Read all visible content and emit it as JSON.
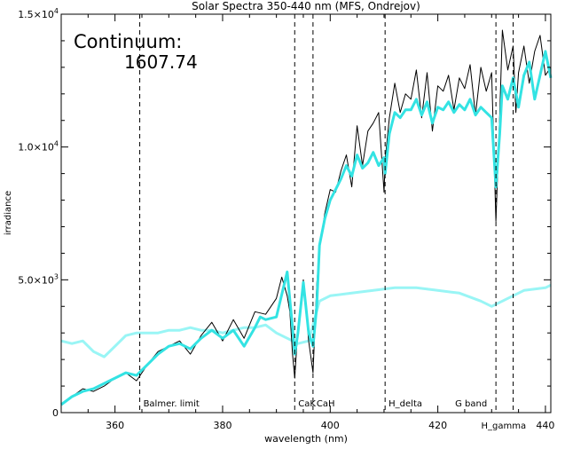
{
  "chart_data": {
    "type": "line",
    "title": "Solar Spectra 350-440 nm (MFS, Ondrejov)",
    "xlabel": "wavelength (nm)",
    "ylabel": "irradiance",
    "xlim": [
      350,
      441
    ],
    "ylim": [
      0,
      15000
    ],
    "x_ticks": [
      {
        "value": 360,
        "label": "360"
      },
      {
        "value": 380,
        "label": "380"
      },
      {
        "value": 400,
        "label": "400"
      },
      {
        "value": 420,
        "label": "420"
      },
      {
        "value": 440,
        "label": "440"
      }
    ],
    "y_ticks": [
      {
        "value": 0,
        "label": "0",
        "exp": ""
      },
      {
        "value": 5000,
        "label": "5.0×10",
        "exp": "3"
      },
      {
        "value": 10000,
        "label": "1.0×10",
        "exp": "4"
      },
      {
        "value": 15000,
        "label": "1.5×10",
        "exp": "4"
      }
    ],
    "annotation": {
      "title": "Continuum:",
      "value": "1607.74"
    },
    "reference_lines": [
      {
        "x": 364.6,
        "label": "Balmer. limit"
      },
      {
        "x": 393.4,
        "label": "CaK"
      },
      {
        "x": 396.8,
        "label": "CaH"
      },
      {
        "x": 410.2,
        "label": "H_delta"
      },
      {
        "x": 430.8,
        "label": "G band"
      },
      {
        "x": 434.0,
        "label": "H_gamma"
      }
    ],
    "series": [
      {
        "role": "high-resolution spectrum",
        "color": "#000000",
        "x": [
          350,
          352,
          354,
          356,
          358,
          360,
          362,
          364,
          366,
          368,
          370,
          372,
          374,
          376,
          378,
          380,
          382,
          384,
          386,
          388,
          390,
          391,
          392,
          392.5,
          393,
          393.4,
          394,
          395,
          396,
          396.8,
          397.5,
          398,
          399,
          400,
          401,
          402,
          403,
          404,
          405,
          406,
          407,
          408,
          409,
          410,
          410.2,
          411,
          412,
          413,
          414,
          415,
          416,
          417,
          418,
          419,
          420,
          421,
          422,
          423,
          424,
          425,
          426,
          427,
          428,
          429,
          430,
          430.8,
          431.5,
          432,
          433,
          434,
          434.5,
          435,
          436,
          437,
          438,
          439,
          440,
          441
        ],
        "y": [
          300,
          600,
          900,
          800,
          1000,
          1300,
          1500,
          1200,
          1800,
          2300,
          2500,
          2700,
          2200,
          2900,
          3400,
          2700,
          3500,
          2800,
          3800,
          3700,
          4300,
          5100,
          4400,
          3800,
          2200,
          1300,
          3200,
          5000,
          2700,
          1500,
          4800,
          6200,
          7500,
          8400,
          8300,
          9100,
          9700,
          8500,
          10800,
          9300,
          10600,
          10900,
          11300,
          8300,
          9500,
          11100,
          12400,
          11300,
          12000,
          11800,
          12900,
          11100,
          12800,
          10600,
          12300,
          12100,
          12700,
          11400,
          12600,
          12200,
          13100,
          11200,
          13000,
          12100,
          12800,
          7200,
          11200,
          14400,
          12900,
          13800,
          11300,
          12800,
          13800,
          12400,
          13600,
          14200,
          12700,
          13000
        ]
      },
      {
        "role": "smoothed spectrum",
        "color": "#33e3e3",
        "x": [
          350,
          352,
          354,
          356,
          358,
          360,
          362,
          364,
          366,
          368,
          370,
          372,
          374,
          376,
          378,
          380,
          382,
          384,
          386,
          387,
          388,
          390,
          392,
          393,
          393.4,
          394,
          395,
          396,
          396.8,
          397.5,
          398,
          399,
          400,
          401,
          402,
          403,
          404,
          405,
          406,
          407,
          408,
          409,
          410,
          410.2,
          411,
          412,
          413,
          414,
          415,
          416,
          417,
          418,
          419,
          420,
          421,
          422,
          423,
          424,
          425,
          426,
          427,
          428,
          429,
          430,
          430.8,
          431.5,
          432,
          433,
          434,
          435,
          436,
          437,
          438,
          439,
          440,
          441
        ],
        "y": [
          300,
          600,
          800,
          900,
          1100,
          1300,
          1500,
          1400,
          1800,
          2200,
          2500,
          2600,
          2400,
          2800,
          3100,
          2800,
          3100,
          2500,
          3200,
          3600,
          3500,
          3600,
          5300,
          3200,
          2200,
          3000,
          4900,
          3000,
          2500,
          4000,
          6300,
          7300,
          8000,
          8400,
          8800,
          9300,
          8900,
          9700,
          9200,
          9400,
          9800,
          9300,
          9600,
          9000,
          10500,
          11300,
          11100,
          11400,
          11400,
          11800,
          11200,
          11700,
          10900,
          11500,
          11400,
          11700,
          11300,
          11600,
          11400,
          11800,
          11200,
          11500,
          11300,
          11100,
          8500,
          10500,
          12300,
          11800,
          12600,
          11500,
          12700,
          13200,
          11800,
          12700,
          13600,
          12600
        ]
      },
      {
        "role": "continuum",
        "color": "#99f5f5",
        "x": [
          350,
          352,
          354,
          356,
          358,
          360,
          362,
          364,
          366,
          368,
          370,
          372,
          374,
          376,
          378,
          380,
          382,
          384,
          386,
          388,
          390,
          392,
          394,
          396,
          398,
          400,
          404,
          408,
          412,
          416,
          420,
          424,
          428,
          430,
          432,
          436,
          440,
          441
        ],
        "y": [
          2700,
          2600,
          2700,
          2300,
          2100,
          2500,
          2900,
          3000,
          3000,
          3000,
          3100,
          3100,
          3200,
          3100,
          3100,
          3000,
          3100,
          3200,
          3200,
          3300,
          3000,
          2800,
          2600,
          2700,
          4200,
          4400,
          4500,
          4600,
          4700,
          4700,
          4600,
          4500,
          4200,
          4000,
          4200,
          4600,
          4700,
          4800
        ]
      }
    ]
  }
}
